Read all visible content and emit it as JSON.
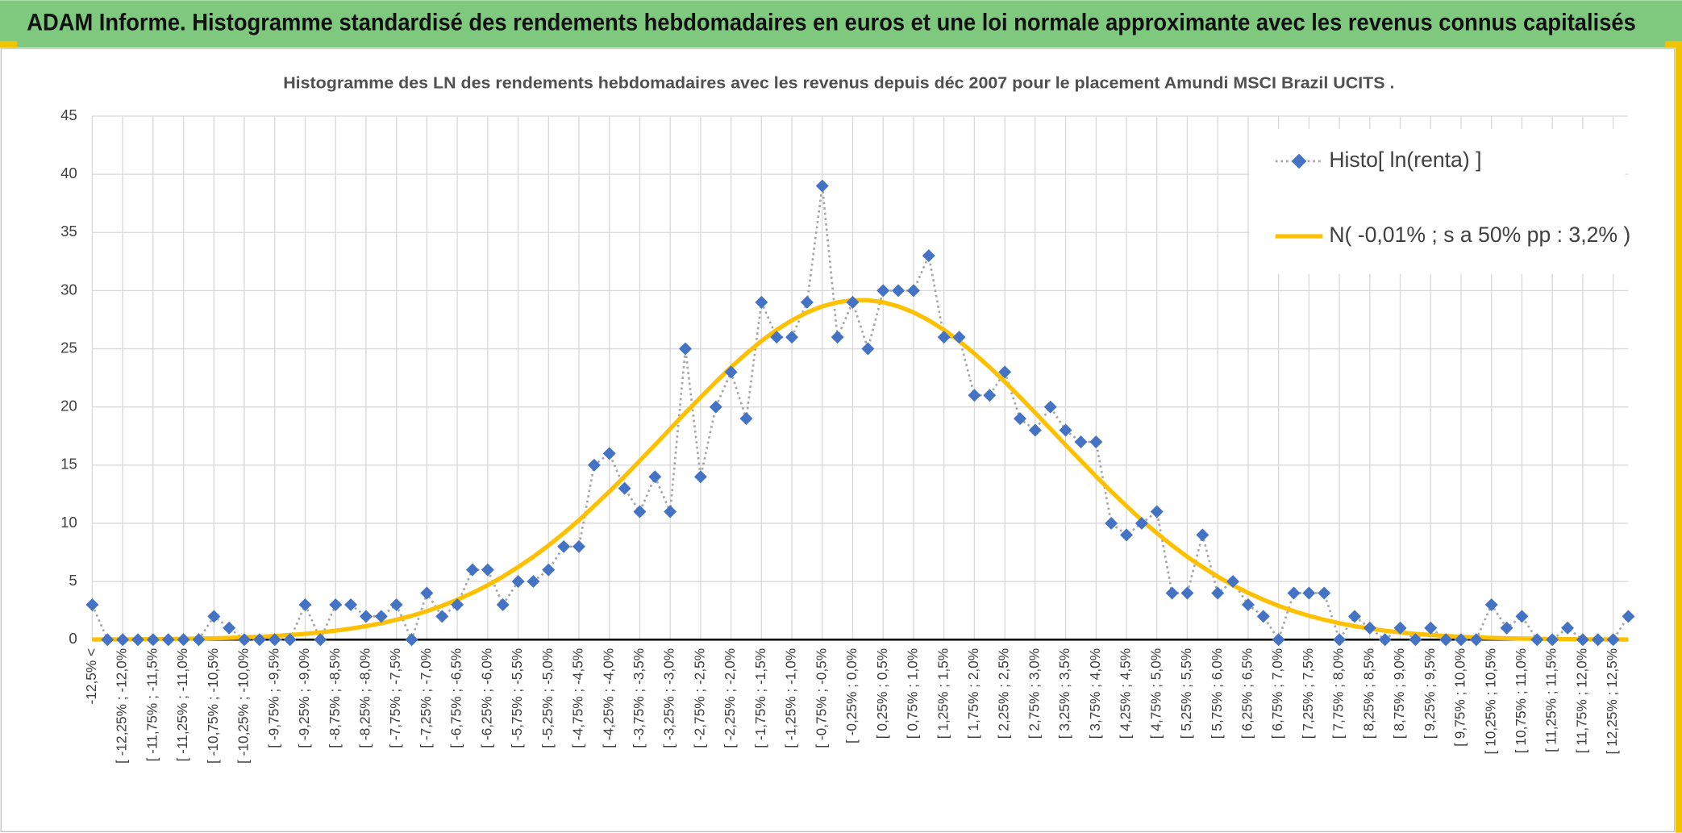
{
  "header": {
    "title": "ADAM Informe. Histogramme standardisé des rendements hebdomadaires en euros et une loi normale approximante avec les revenus connus capitalisés"
  },
  "chart_data": {
    "type": "line",
    "title": "Histogramme des LN des rendements hebdomadaires avec les revenus depuis déc 2007 pour le placement Amundi MSCI Brazil UCITS .",
    "categories": [
      "-12,5% <",
      null,
      "[ -12,25% ; -12,0%",
      null,
      "[ -11,75% ; -11,5%",
      null,
      "[ -11,25% ; -11,0%",
      null,
      "[ -10,75% ; -10,5%",
      null,
      "[ -10,25% ; -10,0%",
      null,
      "[ -9,75% ; -9,5%",
      null,
      "[ -9,25% ; -9,0%",
      null,
      "[ -8,75% ; -8,5%",
      null,
      "[ -8,25% ; -8,0%",
      null,
      "[ -7,75% ; -7,5%",
      null,
      "[ -7,25% ; -7,0%",
      null,
      "[ -6,75% ; -6,5%",
      null,
      "[ -6,25% ; -6,0%",
      null,
      "[ -5,75% ; -5,5%",
      null,
      "[ -5,25% ; -5,0%",
      null,
      "[ -4,75% ; -4,5%",
      null,
      "[ -4,25% ; -4,0%",
      null,
      "[ -3,75% ; -3,5%",
      null,
      "[ -3,25% ; -3,0%",
      null,
      "[ -2,75% ; -2,5%",
      null,
      "[ -2,25% ; -2,0%",
      null,
      "[ -1,75% ; -1,5%",
      null,
      "[ -1,25% ; -1,0%",
      null,
      "[ -0,75% ; -0,5%",
      null,
      "[ -0,25% ; 0,0%",
      null,
      "[ 0,25% ; 0,5%",
      null,
      "[ 0,75% ; 1,0%",
      null,
      "[ 1,25% ; 1,5%",
      null,
      "[ 1,75% ; 2,0%",
      null,
      "[ 2,25% ; 2,5%",
      null,
      "[ 2,75% ; 3,0%",
      null,
      "[ 3,25% ; 3,5%",
      null,
      "[ 3,75% ; 4,0%",
      null,
      "[ 4,25% ; 4,5%",
      null,
      "[ 4,75% ; 5,0%",
      null,
      "[ 5,25% ; 5,5%",
      null,
      "[ 5,75% ; 6,0%",
      null,
      "[ 6,25% ; 6,5%",
      null,
      "[ 6,75% ; 7,0%",
      null,
      "[ 7,25% ; 7,5%",
      null,
      "[ 7,75% ; 8,0%",
      null,
      "[ 8,25% ; 8,5%",
      null,
      "[ 8,75% ; 9,0%",
      null,
      "[ 9,25% ; 9,5%",
      null,
      "[ 9,75% ; 10,0%",
      null,
      "[ 10,25% ; 10,5%",
      null,
      "[ 10,75% ; 11,0%",
      null,
      "[ 11,25% ; 11,5%",
      null,
      "[ 11,75% ; 12,0%",
      null,
      "[ 12,25% ; 12,5%",
      null
    ],
    "series": [
      {
        "name": "Histo[ ln(renta) ]",
        "color": "#4472c4",
        "line_color": "#a6a6a6",
        "marker": "diamond",
        "values": [
          3,
          0,
          0,
          0,
          0,
          0,
          0,
          0,
          2,
          1,
          0,
          0,
          0,
          0,
          3,
          0,
          3,
          3,
          2,
          2,
          3,
          0,
          4,
          2,
          3,
          6,
          6,
          3,
          5,
          5,
          6,
          8,
          8,
          15,
          16,
          13,
          11,
          14,
          11,
          25,
          14,
          20,
          23,
          19,
          29,
          26,
          26,
          29,
          39,
          26,
          29,
          25,
          30,
          30,
          30,
          33,
          26,
          26,
          21,
          21,
          23,
          19,
          18,
          20,
          18,
          17,
          17,
          10,
          9,
          10,
          11,
          4,
          4,
          9,
          4,
          5,
          3,
          2,
          0,
          4,
          4,
          4,
          0,
          2,
          1,
          0,
          1,
          0,
          1,
          0,
          0,
          0,
          3,
          1,
          2,
          0,
          0,
          1,
          0,
          0,
          0,
          2
        ]
      },
      {
        "name": "N( -0,01% ; s a 50% pp : 3,2% )",
        "color": "#ffc000",
        "values": [
          0.01,
          0.02,
          0.02,
          0.03,
          0.04,
          0.05,
          0.07,
          0.09,
          0.12,
          0.15,
          0.2,
          0.25,
          0.32,
          0.4,
          0.5,
          0.62,
          0.77,
          0.95,
          1.16,
          1.41,
          1.71,
          2.05,
          2.45,
          2.91,
          3.43,
          4.02,
          4.68,
          5.42,
          6.24,
          7.12,
          8.1,
          9.15,
          10.27,
          11.49,
          12.73,
          14.03,
          15.38,
          16.74,
          18.12,
          19.5,
          20.84,
          22.16,
          23.42,
          24.59,
          25.67,
          26.63,
          27.45,
          28.13,
          28.65,
          29.0,
          29.18,
          29.18,
          29.0,
          28.65,
          28.13,
          27.45,
          26.63,
          25.67,
          24.59,
          23.42,
          22.16,
          20.84,
          19.5,
          18.12,
          16.74,
          15.38,
          14.03,
          12.73,
          11.49,
          10.27,
          9.15,
          8.1,
          7.12,
          6.24,
          5.42,
          4.68,
          4.02,
          3.43,
          2.91,
          2.45,
          2.05,
          1.71,
          1.41,
          1.16,
          0.95,
          0.77,
          0.62,
          0.5,
          0.4,
          0.32,
          0.25,
          0.2,
          0.15,
          0.12,
          0.09,
          0.07,
          0.05,
          0.04,
          0.03,
          0.02,
          0.02,
          0.01
        ]
      }
    ],
    "ylim": [
      0,
      45
    ],
    "yticks": [
      0,
      5,
      10,
      15,
      20,
      25,
      30,
      35,
      40,
      45
    ],
    "grid": true,
    "legend": "top-right"
  }
}
